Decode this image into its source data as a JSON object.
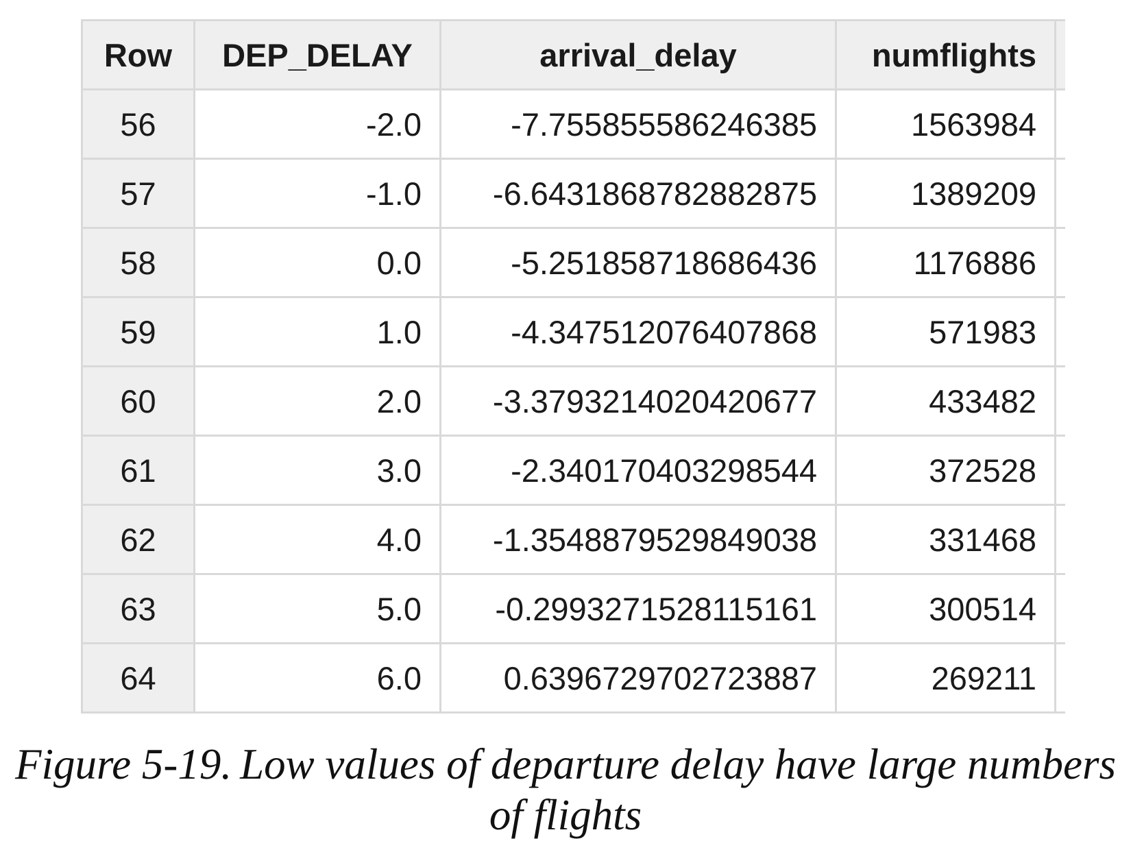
{
  "table": {
    "headers": [
      "Row",
      "DEP_DELAY",
      "arrival_delay",
      "numflights"
    ],
    "rows": [
      {
        "row": "56",
        "dep_delay": "-2.0",
        "arrival_delay": "-7.755855586246385",
        "numflights": "1563984"
      },
      {
        "row": "57",
        "dep_delay": "-1.0",
        "arrival_delay": "-6.643186878288287​5",
        "numflights": "1389209"
      },
      {
        "row": "58",
        "dep_delay": "0.0",
        "arrival_delay": "-5.251858718686436",
        "numflights": "1176886"
      },
      {
        "row": "59",
        "dep_delay": "1.0",
        "arrival_delay": "-4.347512076407868",
        "numflights": "571983"
      },
      {
        "row": "60",
        "dep_delay": "2.0",
        "arrival_delay": "-3.379321402042067​7",
        "numflights": "433482"
      },
      {
        "row": "61",
        "dep_delay": "3.0",
        "arrival_delay": "-2.340170403298544",
        "numflights": "372528"
      },
      {
        "row": "62",
        "dep_delay": "4.0",
        "arrival_delay": "-1.354887952984903​8",
        "numflights": "331468"
      },
      {
        "row": "63",
        "dep_delay": "5.0",
        "arrival_delay": "-0.299327152811516​1",
        "numflights": "300514"
      },
      {
        "row": "64",
        "dep_delay": "6.0",
        "arrival_delay": "0.639672970272388​7",
        "numflights": "269211"
      }
    ]
  },
  "caption": {
    "label": "Figure 5-19.",
    "text": "Low values of departure delay have large numbers of flights"
  }
}
